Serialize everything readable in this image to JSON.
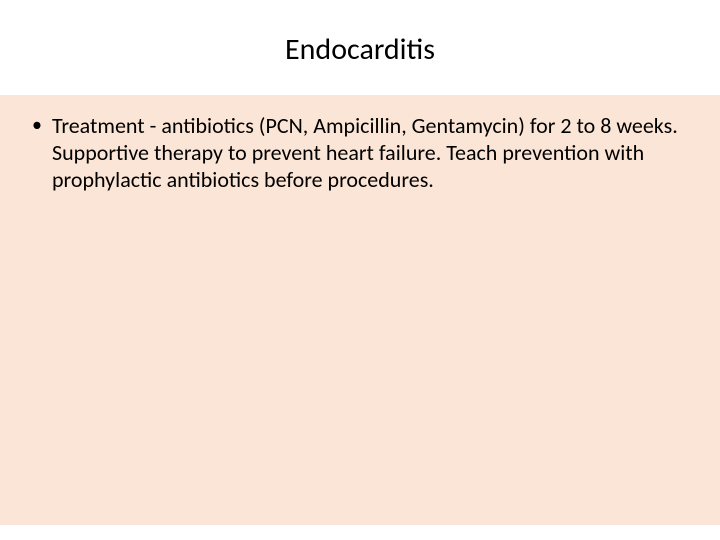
{
  "slide": {
    "title": "Endocarditis",
    "bullets": [
      "Treatment - antibiotics (PCN, Ampicillin, Gentamycin) for 2 to 8 weeks. Supportive therapy to prevent heart failure. Teach prevention with prophylactic antibiotics before procedures."
    ],
    "style": {
      "title_fontsize": 30,
      "title_color": "#000000",
      "title_bg": "#ffffff",
      "body_fontsize": 22,
      "body_color": "#000000",
      "body_bg": "#fbe5d6",
      "slide_bg": "#ffffff",
      "bullet_char": "•",
      "font_family": "Calibri"
    }
  }
}
